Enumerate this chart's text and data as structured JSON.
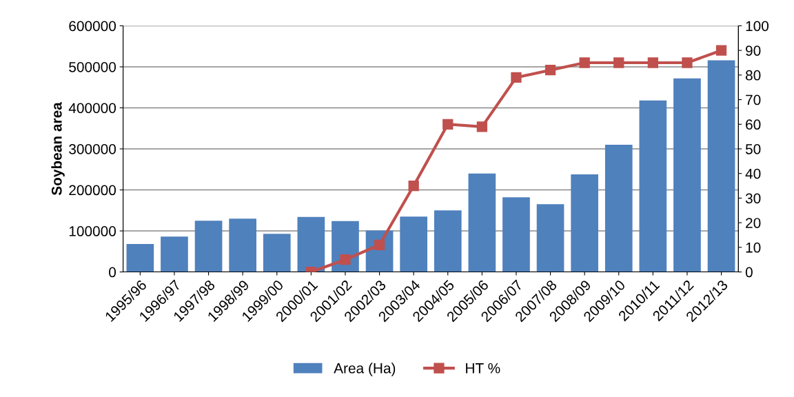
{
  "chart_data": {
    "type": "bar",
    "ylabel": "Soybean area",
    "categories": [
      "1995/96",
      "1996/97",
      "1997/98",
      "1998/99",
      "1999/00",
      "2000/01",
      "2001/02",
      "2002/03",
      "2003/04",
      "2004/05",
      "2005/06",
      "2006/07",
      "2007/08",
      "2008/09",
      "2009/10",
      "2010/11",
      "2011/12",
      "2012/13"
    ],
    "series": [
      {
        "name": "Area (Ha)",
        "color": "#4f81bd",
        "values": [
          68000,
          86000,
          125000,
          130000,
          93000,
          134000,
          124000,
          101000,
          135000,
          150000,
          240000,
          182000,
          165000,
          238000,
          310000,
          418000,
          472000,
          516000
        ]
      },
      {
        "name": "HT %",
        "type": "line",
        "axis": "y2",
        "color": "#c0504d",
        "marker": "square",
        "values": [
          null,
          null,
          null,
          null,
          null,
          0,
          5,
          11,
          35,
          60,
          59,
          79,
          82,
          85,
          85,
          85,
          85,
          90
        ]
      }
    ],
    "ylim": [
      0,
      600000
    ],
    "yticks": [
      0,
      100000,
      200000,
      300000,
      400000,
      500000,
      600000
    ],
    "y2lim": [
      0,
      100
    ],
    "y2ticks": [
      0,
      10,
      20,
      30,
      40,
      50,
      60,
      70,
      80,
      90,
      100
    ],
    "grid": "y",
    "legend": "bottom"
  }
}
